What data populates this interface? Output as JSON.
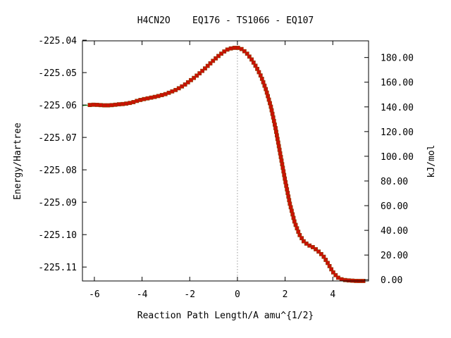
{
  "chart_data": {
    "type": "line",
    "title": "H4CN2O    EQ176 - TS1066 - EQ107",
    "xlabel": "Reaction Path Length/A amu^{1/2}",
    "ylabel": "Energy/Hartree",
    "y2label": "kJ/mol",
    "xlim": [
      -6.5,
      5.5
    ],
    "ylim": [
      -225.1143,
      -225.0402
    ],
    "y2lim": [
      -1.0,
      193.5
    ],
    "x_ticks": [
      -6,
      -4,
      -2,
      0,
      2,
      4
    ],
    "x_tick_labels": [
      "-6",
      "-4",
      "-2",
      "0",
      "2",
      "4"
    ],
    "y_ticks": [
      -225.04,
      -225.05,
      -225.06,
      -225.07,
      -225.08,
      -225.09,
      -225.1,
      -225.11
    ],
    "y_tick_labels": [
      "-225.04",
      "-225.05",
      "-225.06",
      "-225.07",
      "-225.08",
      "-225.09",
      "-225.10",
      "-225.11"
    ],
    "y2_ticks": [
      0,
      20,
      40,
      60,
      80,
      100,
      120,
      140,
      160,
      180
    ],
    "y2_tick_labels": [
      "0.00",
      "20.00",
      "40.00",
      "60.00",
      "80.00",
      "100.00",
      "120.00",
      "140.00",
      "160.00",
      "180.00"
    ],
    "ts_x": 0,
    "grid": false,
    "legend": "none",
    "colors": {
      "curve": "#00a000",
      "points": "#cc1100",
      "ts_line": "#999999"
    },
    "series": [
      {
        "x": [
          -6.5,
          -6.2,
          -6.0,
          -5.8,
          -5.6,
          -5.4,
          -5.2,
          -5.0,
          -4.8,
          -4.6,
          -4.4,
          -4.2,
          -4.0,
          -3.8,
          -3.6,
          -3.4,
          -3.2,
          -3.0,
          -2.8,
          -2.6,
          -2.4,
          -2.2,
          -2.0,
          -1.8,
          -1.6,
          -1.4,
          -1.2,
          -1.0,
          -0.8,
          -0.6,
          -0.4,
          -0.2,
          0.0,
          0.2,
          0.4,
          0.6,
          0.8,
          1.0,
          1.2,
          1.4,
          1.6,
          1.8,
          2.0,
          2.2,
          2.4,
          2.6,
          2.8,
          3.0,
          3.2,
          3.4,
          3.6,
          3.8,
          4.0,
          4.2,
          4.4,
          4.6,
          4.8,
          5.0,
          5.2,
          5.4
        ],
        "y": [
          -225.0602,
          -225.06,
          -225.0599,
          -225.06,
          -225.0601,
          -225.0601,
          -225.06,
          -225.0598,
          -225.0597,
          -225.0595,
          -225.0592,
          -225.0587,
          -225.0583,
          -225.058,
          -225.0577,
          -225.0574,
          -225.057,
          -225.0566,
          -225.056,
          -225.0554,
          -225.0546,
          -225.0537,
          -225.0526,
          -225.0515,
          -225.0503,
          -225.049,
          -225.0476,
          -225.0462,
          -225.0449,
          -225.0437,
          -225.0428,
          -225.0424,
          -225.0423,
          -225.0428,
          -225.0441,
          -225.046,
          -225.0484,
          -225.0513,
          -225.0553,
          -225.0604,
          -225.0672,
          -225.0752,
          -225.0832,
          -225.0905,
          -225.0962,
          -225.1,
          -225.1023,
          -225.1033,
          -225.104,
          -225.1052,
          -225.1066,
          -225.1089,
          -225.1115,
          -225.1132,
          -225.1139,
          -225.1141,
          -225.1142,
          -225.1143,
          -225.1143,
          -225.1143
        ]
      }
    ]
  }
}
